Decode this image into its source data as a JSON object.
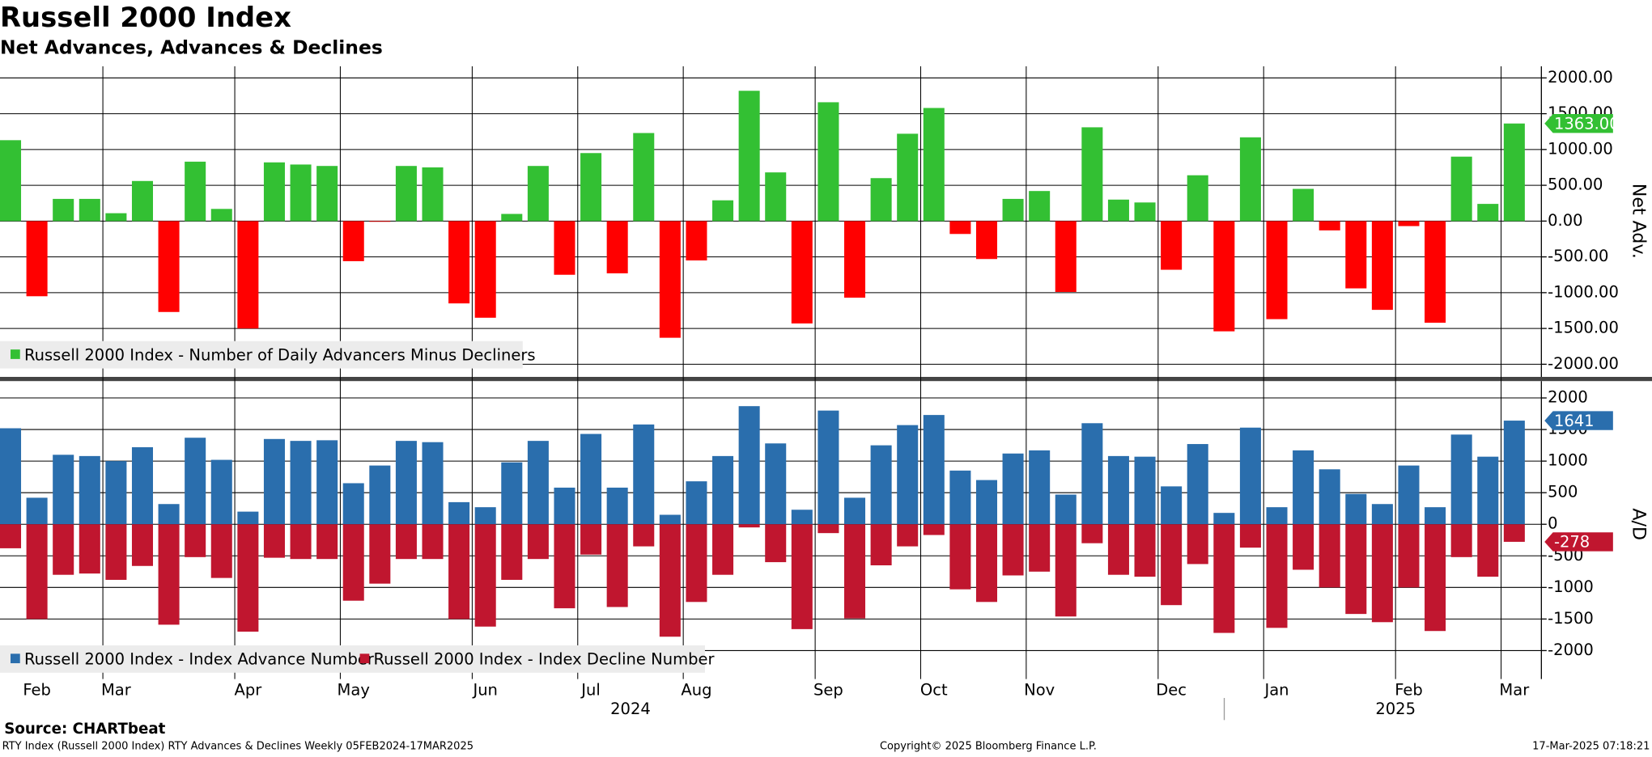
{
  "title": "Russell 2000 Index",
  "subtitle": "Net Advances, Advances & Declines",
  "chart_data": [
    {
      "type": "bar",
      "y_label": "Net Adv.",
      "ylim": [
        -2000,
        2000
      ],
      "yticks": [
        {
          "value": 2000,
          "label": "2000.00"
        },
        {
          "value": 1500,
          "label": "1500.00"
        },
        {
          "value": 1000,
          "label": "1000.00"
        },
        {
          "value": 500,
          "label": "500.00"
        },
        {
          "value": 0,
          "label": "0.00"
        },
        {
          "value": -500,
          "label": "-500.00"
        },
        {
          "value": -1000,
          "label": "-1000.00"
        },
        {
          "value": -1500,
          "label": "-1500.00"
        },
        {
          "value": -2000,
          "label": "-2000.00"
        }
      ],
      "grid": true,
      "legend": "lower left",
      "series": [
        {
          "name": "Russell 2000 Index - Number of Daily Advancers Minus Decliners",
          "color": "#33c033",
          "negative_color": "#ff0000",
          "last_label": "1363.00",
          "values": [
            1130,
            -1050,
            310,
            310,
            110,
            560,
            -1270,
            830,
            170,
            -1500,
            820,
            790,
            770,
            -560,
            -10,
            770,
            750,
            -1150,
            -1350,
            100,
            770,
            -750,
            950,
            -730,
            1230,
            -1630,
            -550,
            290,
            1820,
            680,
            -1430,
            1660,
            -1070,
            600,
            1220,
            1580,
            -180,
            -530,
            310,
            420,
            -990,
            1310,
            300,
            260,
            -680,
            640,
            -1540,
            1170,
            -1370,
            450,
            -130,
            -940,
            -1240,
            -70,
            -1420,
            900,
            240,
            1363
          ]
        }
      ]
    },
    {
      "type": "bar",
      "y_label": "A/D",
      "ylim": [
        -2000,
        2000
      ],
      "yticks": [
        2000,
        1500,
        1000,
        500,
        0,
        -500,
        -1000,
        -1500,
        -2000
      ],
      "grid": true,
      "legend": "lower left",
      "categories": [
        null,
        "Feb",
        null,
        null,
        "Mar",
        null,
        null,
        null,
        null,
        "Apr",
        null,
        null,
        null,
        "May",
        null,
        null,
        null,
        null,
        "Jun",
        null,
        null,
        null,
        "Jul",
        null,
        null,
        null,
        "Aug",
        null,
        null,
        null,
        null,
        "Sep",
        null,
        null,
        null,
        "Oct",
        null,
        null,
        null,
        "Nov",
        null,
        null,
        null,
        null,
        "Dec",
        null,
        null,
        null,
        "Jan",
        null,
        null,
        null,
        null,
        "Feb",
        null,
        null,
        null,
        "Mar"
      ],
      "years": [
        "2024",
        "2025"
      ],
      "series": [
        {
          "name": "Russell 2000 Index - Index Advance Number",
          "color": "#2a6ead",
          "last_label": "1641",
          "values": [
            1520,
            420,
            1100,
            1080,
            1000,
            1220,
            320,
            1370,
            1020,
            200,
            1350,
            1320,
            1330,
            650,
            930,
            1320,
            1300,
            350,
            270,
            980,
            1320,
            580,
            1430,
            580,
            1580,
            150,
            680,
            1080,
            1870,
            1280,
            230,
            1800,
            420,
            1250,
            1570,
            1730,
            850,
            700,
            1120,
            1170,
            470,
            1600,
            1080,
            1070,
            600,
            1270,
            180,
            1530,
            270,
            1170,
            870,
            480,
            320,
            930,
            270,
            1420,
            1070,
            1641
          ]
        },
        {
          "name": "Russell 2000 Index - Index Decline Number",
          "color": "#c0162f",
          "last_label": "-278",
          "values": [
            -380,
            -1500,
            -800,
            -780,
            -880,
            -660,
            -1590,
            -520,
            -850,
            -1700,
            -530,
            -550,
            -550,
            -1210,
            -940,
            -550,
            -550,
            -1500,
            -1620,
            -880,
            -550,
            -1330,
            -480,
            -1310,
            -350,
            -1780,
            -1230,
            -800,
            -50,
            -600,
            -1660,
            -140,
            -1490,
            -650,
            -350,
            -170,
            -1030,
            -1230,
            -810,
            -750,
            -1460,
            -300,
            -800,
            -830,
            -1280,
            -630,
            -1720,
            -370,
            -1640,
            -720,
            -1000,
            -1420,
            -1550,
            -1000,
            -1690,
            -520,
            -830,
            -278
          ]
        }
      ]
    }
  ],
  "footer": {
    "source": "Source: CHARTbeat",
    "description": "RTY Index (Russell 2000 Index) RTY Advances & Declines  Weekly 05FEB2024-17MAR2025",
    "copyright": "Copyright© 2025 Bloomberg Finance L.P.",
    "timestamp": "17-Mar-2025 07:18:21"
  }
}
